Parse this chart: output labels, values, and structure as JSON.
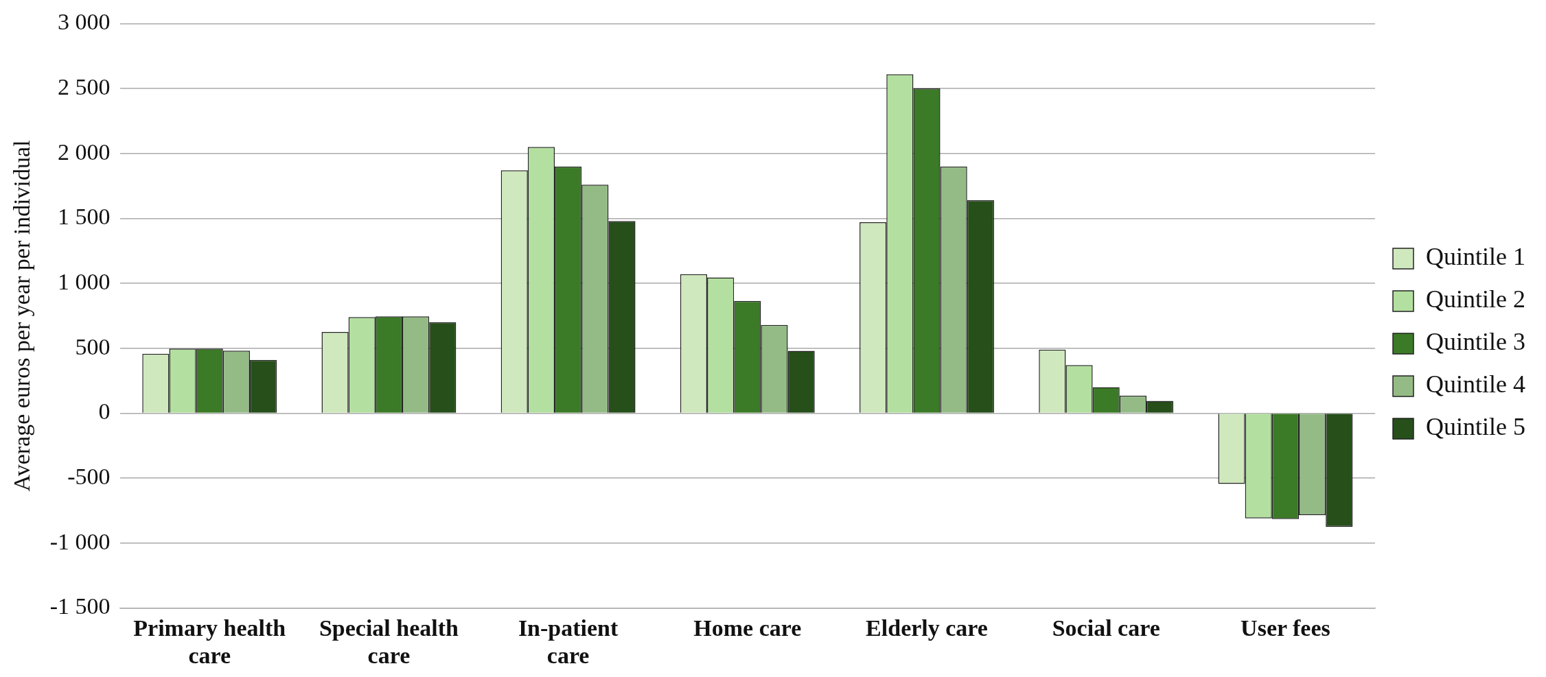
{
  "chart_data": {
    "type": "bar",
    "ylabel": "Average euros per year per individual",
    "categories": [
      "Primary health care",
      "Special health care",
      "In-patient care",
      "Home care",
      "Elderly care",
      "Social care",
      "User fees"
    ],
    "series": [
      {
        "name": "Quintile 1",
        "color": "#cfe8bd",
        "values": [
          458,
          625,
          1870,
          1070,
          1470,
          490,
          -545
        ]
      },
      {
        "name": "Quintile 2",
        "color": "#b3e0a0",
        "values": [
          497,
          740,
          2050,
          1045,
          2610,
          370,
          -810
        ]
      },
      {
        "name": "Quintile 3",
        "color": "#3b7a27",
        "values": [
          497,
          745,
          1900,
          865,
          2500,
          200,
          -815
        ]
      },
      {
        "name": "Quintile 4",
        "color": "#94bb86",
        "values": [
          482,
          745,
          1760,
          680,
          1900,
          135,
          -785
        ]
      },
      {
        "name": "Quintile 5",
        "color": "#264f1a",
        "values": [
          410,
          700,
          1480,
          480,
          1640,
          95,
          -875
        ]
      }
    ],
    "ylim": [
      -1500,
      3000
    ],
    "yticks": [
      {
        "value": -1500,
        "label": "-1 500"
      },
      {
        "value": -1000,
        "label": "-1 000"
      },
      {
        "value": -500,
        "label": "-500"
      },
      0,
      500,
      {
        "value": 1000,
        "label": "1 000"
      },
      {
        "value": 1500,
        "label": "1 500"
      },
      {
        "value": 2000,
        "label": "2 000"
      },
      {
        "value": 2500,
        "label": "2 500"
      },
      {
        "value": 3000,
        "label": "3 000"
      }
    ],
    "grid": "y",
    "legend": "right"
  }
}
